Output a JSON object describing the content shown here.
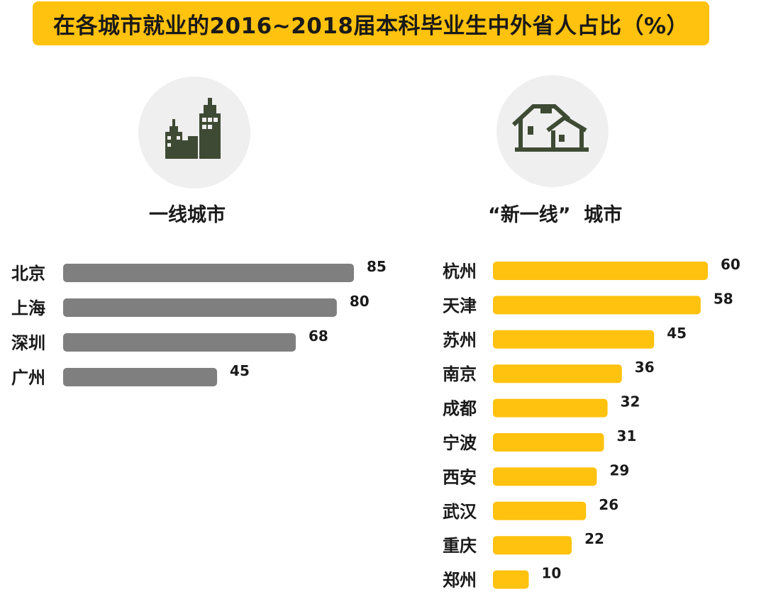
{
  "title": "在各城市就业的2016~2018届本科毕业生中外省人占比（%）",
  "colors": {
    "banner": "#ffc20e",
    "tier1_bar": "#7f7f7f",
    "new_tier1_bar": "#ffc20e",
    "icon": "#3f4a34",
    "icon_bg": "#efefef"
  },
  "icons": {
    "tier1": "city-buildings-icon",
    "new_tier1": "houses-icon"
  },
  "chart_data": [
    {
      "type": "bar",
      "orientation": "horizontal",
      "title": "一线城市",
      "categories": [
        "北京",
        "上海",
        "深圳",
        "广州"
      ],
      "values": [
        85,
        80,
        68,
        45
      ],
      "data_labels": [
        "85",
        "80",
        "68",
        "45"
      ],
      "grid": false
    },
    {
      "type": "bar",
      "orientation": "horizontal",
      "title": "“新一线”  城市",
      "categories": [
        "杭州",
        "天津",
        "苏州",
        "南京",
        "成都",
        "宁波",
        "西安",
        "武汉",
        "重庆",
        "郑州"
      ],
      "values": [
        60,
        58,
        45,
        36,
        32,
        31,
        29,
        26,
        22,
        10
      ],
      "data_labels": [
        "60",
        "58",
        "45",
        "36",
        "32",
        "31",
        "29",
        "26",
        "22",
        "10"
      ],
      "grid": false
    }
  ]
}
